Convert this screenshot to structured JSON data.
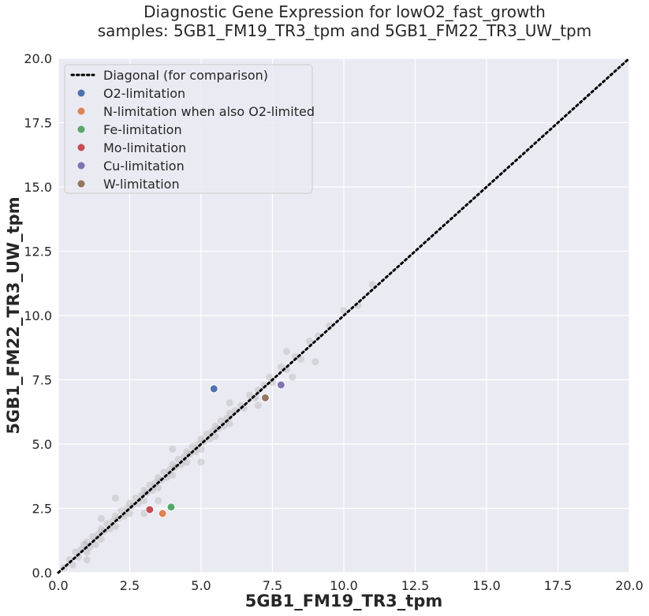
{
  "chart_data": {
    "type": "scatter",
    "title": [
      "Diagnostic Gene Expression for lowO2_fast_growth",
      "samples: 5GB1_FM19_TR3_tpm and 5GB1_FM22_TR3_UW_tpm"
    ],
    "xlabel": "5GB1_FM19_TR3_tpm",
    "ylabel": "5GB1_FM22_TR3_UW_tpm",
    "xlim": [
      0,
      20
    ],
    "ylim": [
      0,
      20
    ],
    "xticks": [
      "0.0",
      "2.5",
      "5.0",
      "7.5",
      "10.0",
      "12.5",
      "15.0",
      "17.5",
      "20.0"
    ],
    "yticks": [
      "0.0",
      "2.5",
      "5.0",
      "7.5",
      "10.0",
      "12.5",
      "15.0",
      "17.5",
      "20.0"
    ],
    "grid": true,
    "legend_position": "top-left",
    "diagonal": {
      "name": "Diagonal (for comparison)",
      "x": [
        0,
        20
      ],
      "y": [
        0,
        20
      ],
      "style": "dotted",
      "color": "#000000"
    },
    "background_cloud": {
      "color": "#a8a8a8",
      "description_points": [
        [
          0.2,
          0.2
        ],
        [
          0.4,
          0.5
        ],
        [
          0.5,
          0.3
        ],
        [
          0.6,
          0.8
        ],
        [
          0.7,
          0.6
        ],
        [
          0.8,
          0.9
        ],
        [
          0.9,
          1.1
        ],
        [
          1.0,
          0.8
        ],
        [
          1.0,
          1.2
        ],
        [
          1.1,
          1.0
        ],
        [
          1.2,
          1.4
        ],
        [
          1.3,
          1.1
        ],
        [
          1.4,
          1.5
        ],
        [
          1.5,
          1.3
        ],
        [
          1.5,
          1.7
        ],
        [
          1.6,
          1.6
        ],
        [
          1.7,
          1.9
        ],
        [
          1.8,
          1.7
        ],
        [
          1.9,
          2.0
        ],
        [
          2.0,
          1.8
        ],
        [
          2.0,
          2.2
        ],
        [
          2.1,
          2.1
        ],
        [
          2.2,
          2.4
        ],
        [
          2.3,
          2.2
        ],
        [
          2.4,
          2.5
        ],
        [
          2.5,
          2.3
        ],
        [
          2.5,
          2.7
        ],
        [
          2.6,
          2.6
        ],
        [
          2.7,
          2.9
        ],
        [
          2.8,
          2.7
        ],
        [
          2.9,
          3.0
        ],
        [
          3.0,
          2.8
        ],
        [
          3.0,
          3.2
        ],
        [
          3.1,
          3.1
        ],
        [
          3.2,
          3.4
        ],
        [
          3.3,
          3.2
        ],
        [
          3.4,
          3.5
        ],
        [
          3.5,
          3.3
        ],
        [
          3.5,
          3.7
        ],
        [
          3.6,
          3.6
        ],
        [
          3.7,
          3.9
        ],
        [
          3.8,
          3.7
        ],
        [
          3.9,
          4.0
        ],
        [
          4.0,
          3.8
        ],
        [
          4.0,
          4.2
        ],
        [
          4.1,
          4.1
        ],
        [
          4.2,
          4.4
        ],
        [
          4.3,
          4.2
        ],
        [
          4.4,
          4.5
        ],
        [
          4.5,
          4.3
        ],
        [
          4.5,
          4.7
        ],
        [
          4.6,
          4.6
        ],
        [
          4.7,
          4.9
        ],
        [
          4.8,
          4.7
        ],
        [
          4.9,
          5.0
        ],
        [
          5.0,
          4.8
        ],
        [
          5.0,
          5.2
        ],
        [
          5.1,
          5.1
        ],
        [
          5.2,
          5.4
        ],
        [
          5.3,
          5.2
        ],
        [
          5.4,
          5.5
        ],
        [
          5.5,
          5.3
        ],
        [
          5.5,
          5.7
        ],
        [
          5.6,
          5.6
        ],
        [
          5.7,
          5.9
        ],
        [
          5.8,
          5.7
        ],
        [
          5.9,
          6.0
        ],
        [
          6.0,
          5.8
        ],
        [
          6.0,
          6.2
        ],
        [
          6.2,
          6.3
        ],
        [
          6.4,
          6.5
        ],
        [
          6.5,
          6.4
        ],
        [
          6.7,
          6.9
        ],
        [
          6.9,
          6.8
        ],
        [
          7.0,
          7.1
        ],
        [
          7.2,
          7.3
        ],
        [
          7.4,
          7.6
        ],
        [
          7.5,
          7.4
        ],
        [
          7.8,
          8.0
        ],
        [
          8.0,
          7.9
        ],
        [
          8.3,
          8.4
        ],
        [
          8.5,
          8.3
        ],
        [
          8.8,
          9.0
        ],
        [
          9.1,
          9.2
        ],
        [
          9.5,
          9.6
        ],
        [
          10.0,
          10.2
        ],
        [
          10.5,
          10.4
        ],
        [
          11.0,
          11.2
        ],
        [
          1.0,
          0.5
        ],
        [
          2.0,
          2.9
        ],
        [
          3.0,
          2.3
        ],
        [
          4.0,
          4.8
        ],
        [
          5.0,
          4.3
        ],
        [
          6.0,
          6.6
        ],
        [
          7.0,
          6.5
        ],
        [
          8.0,
          8.6
        ],
        [
          8.2,
          7.6
        ],
        [
          9.0,
          8.2
        ],
        [
          3.5,
          2.8
        ],
        [
          1.5,
          2.1
        ]
      ]
    },
    "series": [
      {
        "name": "O2-limitation",
        "color": "#4c72b0",
        "x": [
          5.45
        ],
        "y": [
          7.15
        ]
      },
      {
        "name": "N-limitation when also O2-limited",
        "color": "#dd8452",
        "x": [
          3.65
        ],
        "y": [
          2.3
        ]
      },
      {
        "name": "Fe-limitation",
        "color": "#55a868",
        "x": [
          3.95
        ],
        "y": [
          2.55
        ]
      },
      {
        "name": "Mo-limitation",
        "color": "#c44e52",
        "x": [
          3.2
        ],
        "y": [
          2.45
        ]
      },
      {
        "name": "Cu-limitation",
        "color": "#8172b3",
        "x": [
          7.8
        ],
        "y": [
          7.3
        ]
      },
      {
        "name": "W-limitation",
        "color": "#937860",
        "x": [
          7.25
        ],
        "y": [
          6.8
        ]
      }
    ]
  },
  "style": {
    "plot_background": "#eaeaf2",
    "grid_color": "#ffffff",
    "legend_background": "#eaeaf2",
    "legend_border": "#cccccc"
  }
}
